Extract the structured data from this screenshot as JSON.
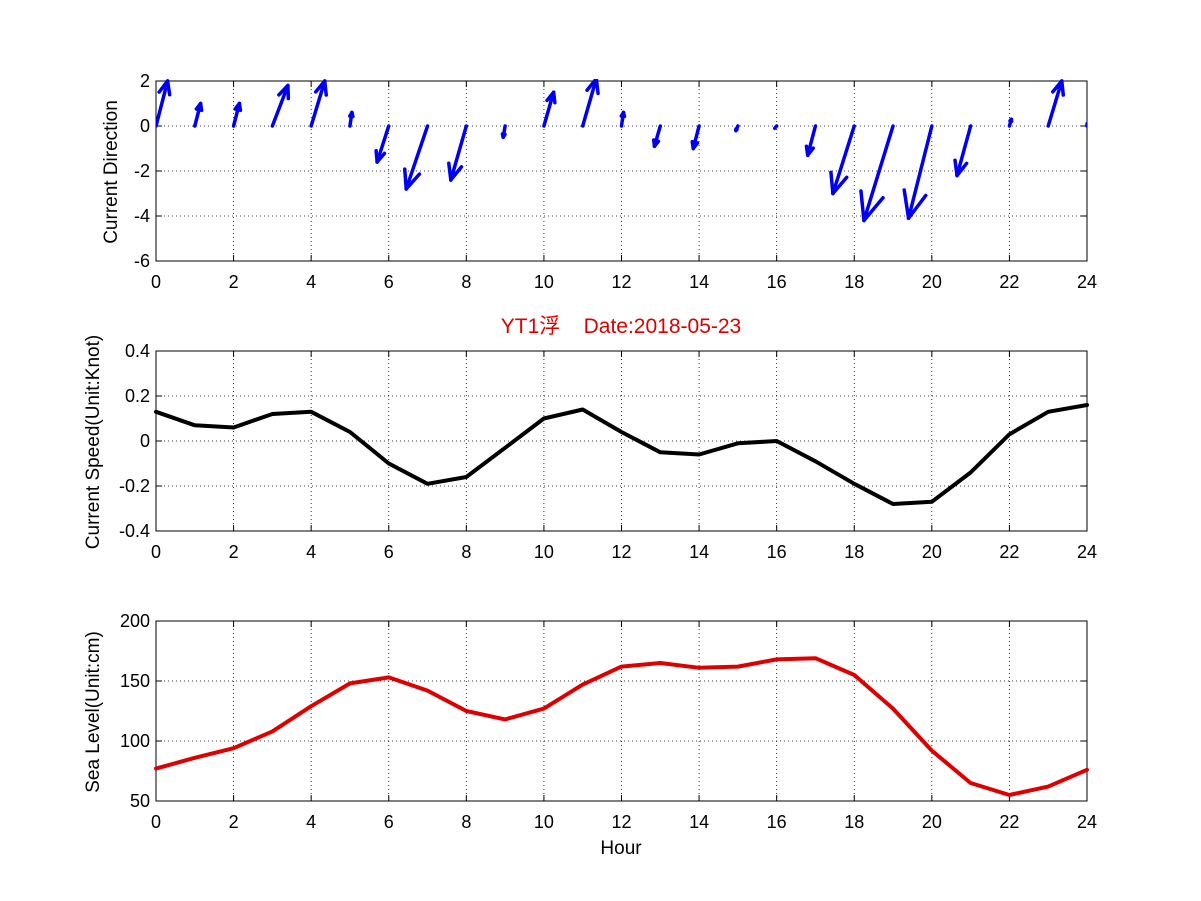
{
  "figure": {
    "title": "YT1浮    Date:2018-05-23",
    "title_color": "#dd0000",
    "x_label": "Hour",
    "x_ticks": [
      "0",
      "2",
      "4",
      "6",
      "8",
      "10",
      "12",
      "14",
      "16",
      "18",
      "20",
      "22",
      "24"
    ]
  },
  "chart_data": [
    {
      "type": "quiver",
      "ylabel": "Current Direction",
      "xlim": [
        0,
        24
      ],
      "ylim": [
        -6,
        2
      ],
      "y_ticks": [
        "2",
        "0",
        "-2",
        "-4",
        "-6"
      ],
      "grid": true,
      "color": "#0000ee",
      "x": [
        0,
        1,
        2,
        3,
        4,
        5,
        6,
        7,
        8,
        9,
        10,
        11,
        12,
        13,
        14,
        15,
        16,
        17,
        18,
        19,
        20,
        21,
        22,
        23,
        24
      ],
      "u": [
        0.3,
        0.15,
        0.15,
        0.4,
        0.35,
        0.05,
        -0.3,
        -0.55,
        -0.4,
        -0.05,
        0.25,
        0.35,
        0.05,
        -0.15,
        -0.15,
        -0.05,
        -0.05,
        -0.2,
        -0.55,
        -0.75,
        -0.6,
        -0.35,
        0.05,
        0.35,
        0.0
      ],
      "v": [
        2.0,
        1.0,
        1.0,
        1.8,
        2.0,
        0.6,
        -1.6,
        -2.8,
        -2.4,
        -0.5,
        1.5,
        2.1,
        0.6,
        -0.9,
        -1.0,
        -0.2,
        -0.1,
        -1.3,
        -3.0,
        -4.2,
        -4.1,
        -2.2,
        0.3,
        2.0,
        0.1
      ]
    },
    {
      "type": "line",
      "ylabel": "Current Speed(Unit:Knot)",
      "xlim": [
        0,
        24
      ],
      "ylim": [
        -0.4,
        0.4
      ],
      "y_ticks": [
        "0.4",
        "0.2",
        "0",
        "-0.2",
        "-0.4"
      ],
      "grid": true,
      "color": "#000000",
      "x": [
        0,
        1,
        2,
        3,
        4,
        5,
        6,
        7,
        8,
        9,
        10,
        11,
        12,
        13,
        14,
        15,
        16,
        17,
        18,
        19,
        20,
        21,
        22,
        23,
        24
      ],
      "y": [
        0.13,
        0.07,
        0.06,
        0.12,
        0.13,
        0.04,
        -0.1,
        -0.19,
        -0.16,
        -0.03,
        0.1,
        0.14,
        0.04,
        -0.05,
        -0.06,
        -0.01,
        0.0,
        -0.09,
        -0.19,
        -0.28,
        -0.27,
        -0.14,
        0.03,
        0.13,
        0.16
      ]
    },
    {
      "type": "line",
      "ylabel": "Sea Level(Unit:cm)",
      "xlabel": "Hour",
      "xlim": [
        0,
        24
      ],
      "ylim": [
        50,
        200
      ],
      "y_ticks": [
        "200",
        "150",
        "100",
        "50"
      ],
      "grid": true,
      "color": "#dd0000",
      "x": [
        0,
        1,
        2,
        3,
        4,
        5,
        6,
        7,
        8,
        9,
        10,
        11,
        12,
        13,
        14,
        15,
        16,
        17,
        18,
        19,
        20,
        21,
        22,
        23,
        24
      ],
      "y": [
        77,
        86,
        94,
        108,
        129,
        148,
        153,
        142,
        125,
        118,
        127,
        147,
        162,
        165,
        161,
        162,
        168,
        169,
        155,
        127,
        92,
        65,
        55,
        62,
        76
      ]
    }
  ]
}
